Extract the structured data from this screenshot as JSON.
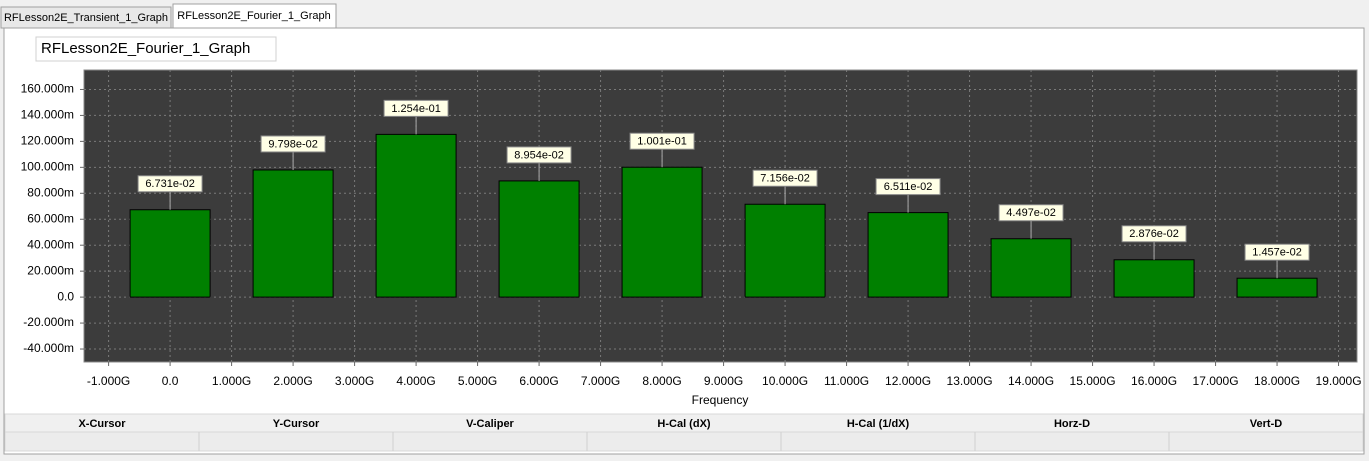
{
  "tabs": [
    "RFLesson2E_Transient_1_Graph",
    "RFLesson2E_Fourier_1_Graph"
  ],
  "chart_data": {
    "type": "bar",
    "title": "RFLesson2E_Fourier_1_Graph",
    "x_label": "Frequency",
    "x": [
      0,
      2000000000,
      4000000000,
      6000000000,
      8000000000,
      10000000000,
      12000000000,
      14000000000,
      16000000000,
      18000000000
    ],
    "values": [
      0.06731,
      0.09798,
      0.1254,
      0.08954,
      0.1001,
      0.07156,
      0.06511,
      0.04497,
      0.02876,
      0.01457
    ],
    "value_labels": [
      "6.731e-02",
      "9.798e-02",
      "1.254e-01",
      "8.954e-02",
      "1.001e-01",
      "7.156e-02",
      "6.511e-02",
      "4.497e-02",
      "2.876e-02",
      "1.457e-02"
    ],
    "color": "#008000",
    "xlim": [
      -1400000000,
      19300000000
    ],
    "xticks": [
      {
        "value": -1000000000,
        "label": "-1.000G"
      },
      {
        "value": 0,
        "label": "0.0"
      },
      {
        "value": 1000000000,
        "label": "1.000G"
      },
      {
        "value": 2000000000,
        "label": "2.000G"
      },
      {
        "value": 3000000000,
        "label": "3.000G"
      },
      {
        "value": 4000000000,
        "label": "4.000G"
      },
      {
        "value": 5000000000,
        "label": "5.000G"
      },
      {
        "value": 6000000000,
        "label": "6.000G"
      },
      {
        "value": 7000000000,
        "label": "7.000G"
      },
      {
        "value": 8000000000,
        "label": "8.000G"
      },
      {
        "value": 9000000000,
        "label": "9.000G"
      },
      {
        "value": 10000000000,
        "label": "10.000G"
      },
      {
        "value": 11000000000,
        "label": "11.000G"
      },
      {
        "value": 12000000000,
        "label": "12.000G"
      },
      {
        "value": 13000000000,
        "label": "13.000G"
      },
      {
        "value": 14000000000,
        "label": "14.000G"
      },
      {
        "value": 15000000000,
        "label": "15.000G"
      },
      {
        "value": 16000000000,
        "label": "16.000G"
      },
      {
        "value": 17000000000,
        "label": "17.000G"
      },
      {
        "value": 18000000000,
        "label": "18.000G"
      },
      {
        "value": 19000000000,
        "label": "19.000G"
      }
    ],
    "ylim": [
      -0.05,
      0.175
    ],
    "yticks": [
      {
        "value": 0.16,
        "label": "160.000m"
      },
      {
        "value": 0.14,
        "label": "140.000m"
      },
      {
        "value": 0.12,
        "label": "120.000m"
      },
      {
        "value": 0.1,
        "label": "100.000m"
      },
      {
        "value": 0.08,
        "label": "80.000m"
      },
      {
        "value": 0.06,
        "label": "60.000m"
      },
      {
        "value": 0.04,
        "label": "40.000m"
      },
      {
        "value": 0.02,
        "label": "20.000m"
      },
      {
        "value": 0,
        "label": "0.0"
      },
      {
        "value": -0.02,
        "label": "-20.000m"
      },
      {
        "value": -0.04,
        "label": "-40.000m"
      }
    ],
    "grid": true
  },
  "measurements": {
    "columns": [
      "X-Cursor",
      "Y-Cursor",
      "V-Caliper",
      "H-Cal (dX)",
      "H-Cal (1/dX)",
      "Horz-D",
      "Vert-D"
    ]
  }
}
